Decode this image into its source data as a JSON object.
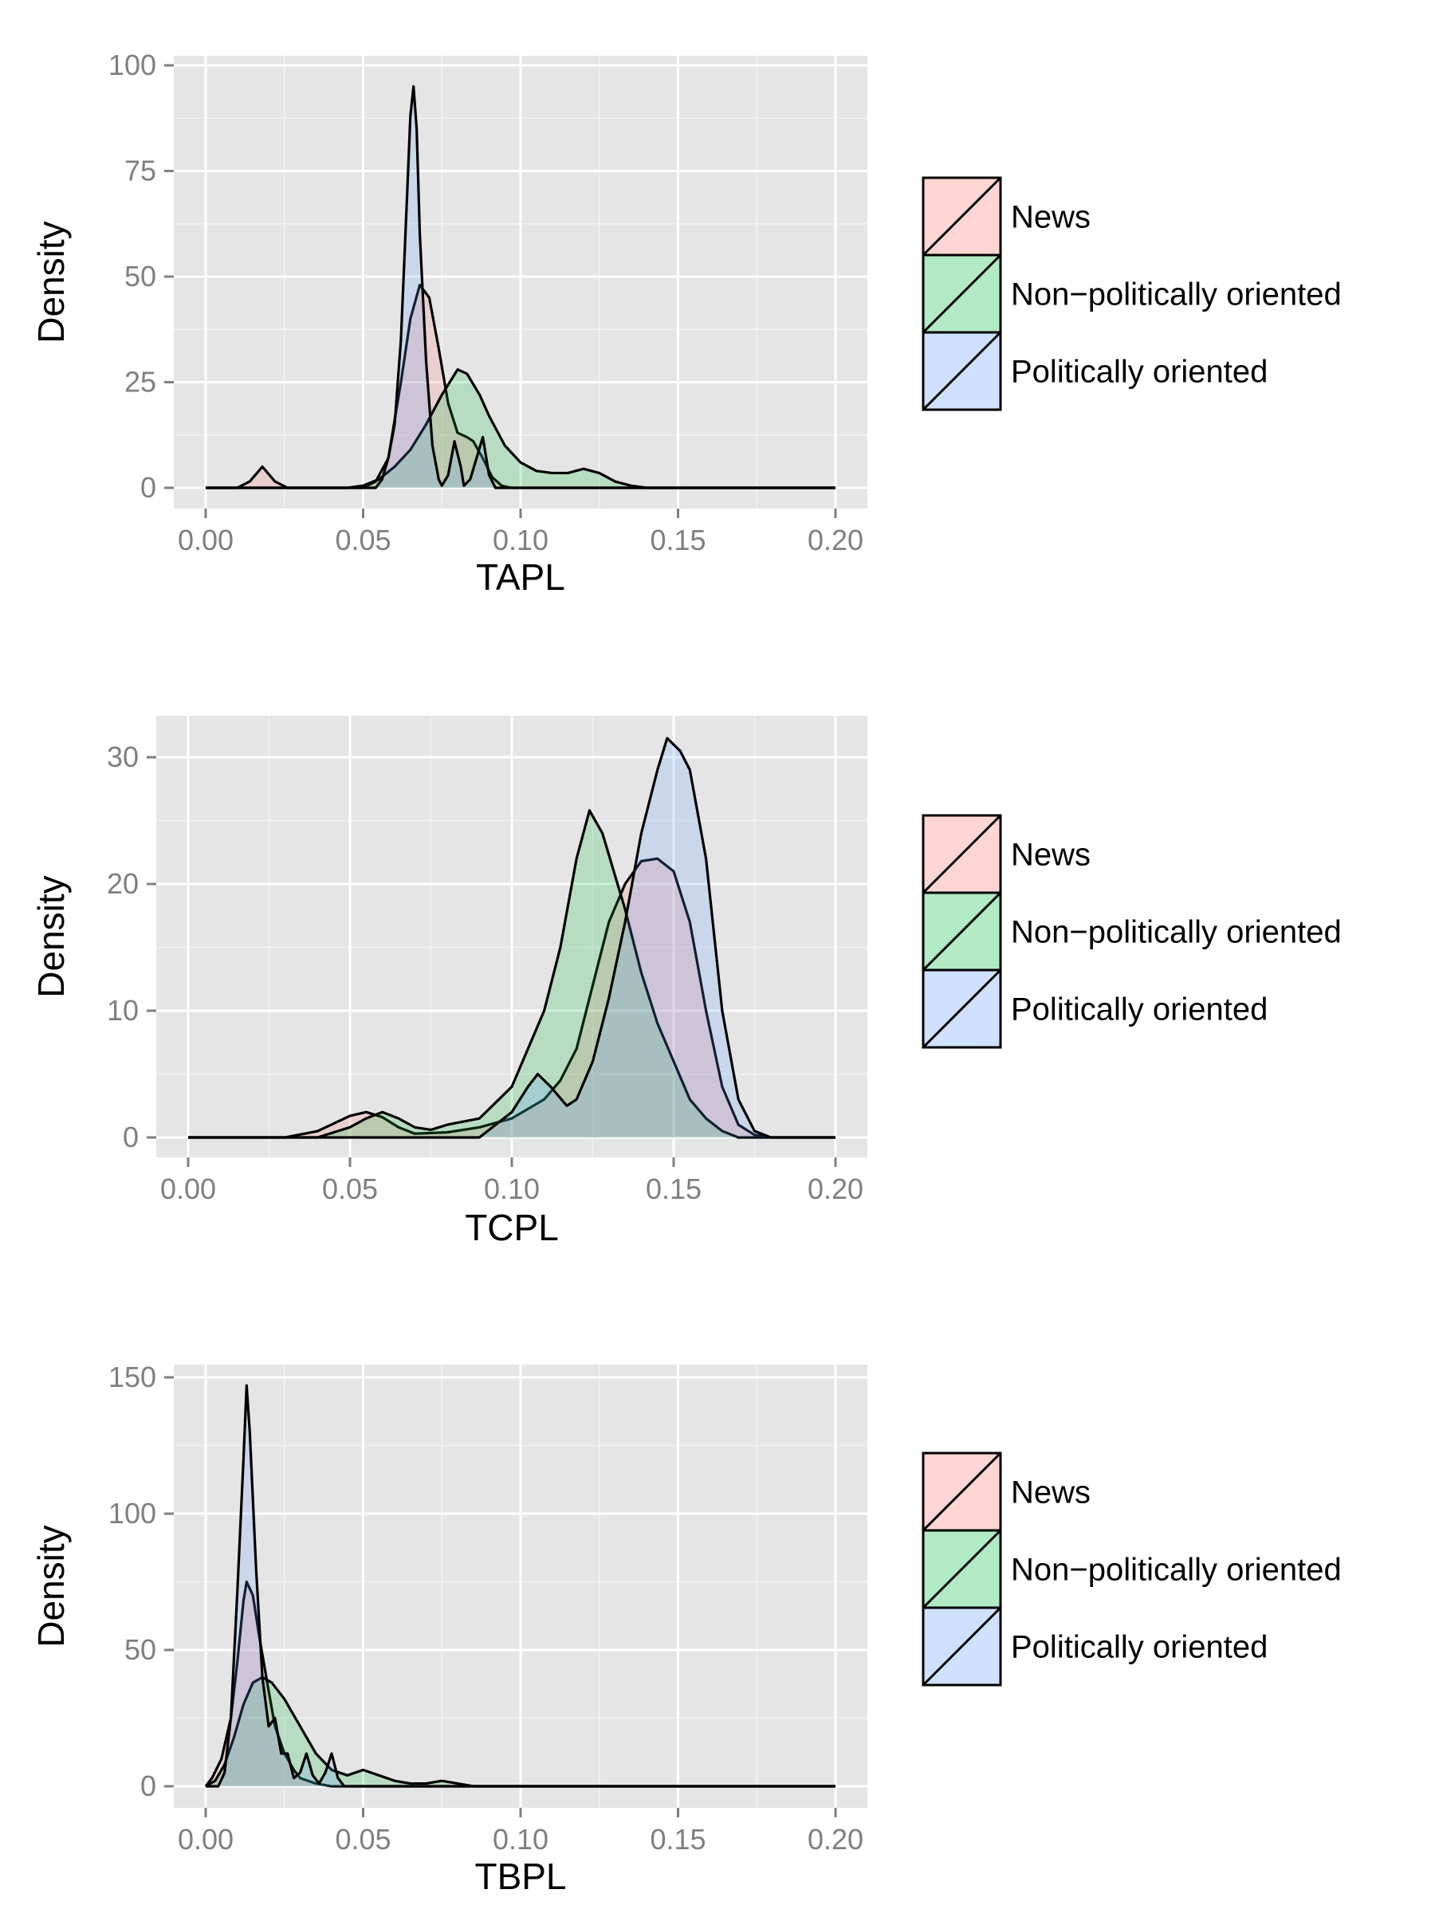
{
  "chart_data": [
    {
      "type": "area",
      "xlabel": "TAPL",
      "ylabel": "Density",
      "xlim": [
        0,
        0.2
      ],
      "ylim": [
        0,
        100
      ],
      "xticks": [
        "0.00",
        "0.05",
        "0.10",
        "0.15",
        "0.20"
      ],
      "xtick_values": [
        0,
        0.05,
        0.1,
        0.15,
        0.2
      ],
      "yticks": [
        "0",
        "25",
        "50",
        "75",
        "100"
      ],
      "ytick_values": [
        0,
        25,
        50,
        75,
        100
      ],
      "grid": true,
      "legend_position": "right",
      "series": [
        {
          "name": "News",
          "color": "#f8766d",
          "points": [
            [
              0,
              0
            ],
            [
              0.01,
              0
            ],
            [
              0.014,
              1.5
            ],
            [
              0.018,
              5
            ],
            [
              0.022,
              1.5
            ],
            [
              0.026,
              0
            ],
            [
              0.05,
              0
            ],
            [
              0.054,
              1.5
            ],
            [
              0.058,
              7
            ],
            [
              0.062,
              25
            ],
            [
              0.065,
              40
            ],
            [
              0.068,
              48
            ],
            [
              0.071,
              45
            ],
            [
              0.074,
              33
            ],
            [
              0.077,
              20
            ],
            [
              0.08,
              13
            ],
            [
              0.083,
              12
            ],
            [
              0.085,
              11
            ],
            [
              0.088,
              7
            ],
            [
              0.091,
              2.5
            ],
            [
              0.094,
              0.5
            ],
            [
              0.097,
              0
            ],
            [
              0.2,
              0
            ]
          ]
        },
        {
          "name": "Non−politically oriented",
          "color": "#00ba38",
          "points": [
            [
              0,
              0
            ],
            [
              0.045,
              0
            ],
            [
              0.05,
              0.5
            ],
            [
              0.055,
              2
            ],
            [
              0.06,
              5
            ],
            [
              0.065,
              9
            ],
            [
              0.07,
              15
            ],
            [
              0.075,
              22
            ],
            [
              0.08,
              28
            ],
            [
              0.083,
              27
            ],
            [
              0.087,
              22
            ],
            [
              0.09,
              17
            ],
            [
              0.095,
              10
            ],
            [
              0.1,
              6
            ],
            [
              0.105,
              4
            ],
            [
              0.11,
              3.5
            ],
            [
              0.115,
              3.5
            ],
            [
              0.12,
              4.5
            ],
            [
              0.125,
              3.5
            ],
            [
              0.13,
              1.5
            ],
            [
              0.135,
              0.5
            ],
            [
              0.14,
              0
            ],
            [
              0.2,
              0
            ]
          ]
        },
        {
          "name": "Politically oriented",
          "color": "#619cff",
          "points": [
            [
              0,
              0
            ],
            [
              0.054,
              0
            ],
            [
              0.056,
              2
            ],
            [
              0.058,
              7
            ],
            [
              0.06,
              15
            ],
            [
              0.062,
              35
            ],
            [
              0.064,
              70
            ],
            [
              0.065,
              88
            ],
            [
              0.066,
              95
            ],
            [
              0.067,
              85
            ],
            [
              0.068,
              60
            ],
            [
              0.07,
              30
            ],
            [
              0.072,
              10
            ],
            [
              0.074,
              2
            ],
            [
              0.075,
              0.5
            ],
            [
              0.077,
              3
            ],
            [
              0.079,
              11
            ],
            [
              0.081,
              5
            ],
            [
              0.082,
              0.5
            ],
            [
              0.084,
              2
            ],
            [
              0.086,
              7
            ],
            [
              0.088,
              12
            ],
            [
              0.09,
              3
            ],
            [
              0.092,
              0
            ],
            [
              0.2,
              0
            ]
          ]
        }
      ]
    },
    {
      "type": "area",
      "xlabel": "TCPL",
      "ylabel": "Density",
      "xlim": [
        0,
        0.2
      ],
      "ylim": [
        0,
        32
      ],
      "xticks": [
        "0.00",
        "0.05",
        "0.10",
        "0.15",
        "0.20"
      ],
      "xtick_values": [
        0,
        0.05,
        0.1,
        0.15,
        0.2
      ],
      "yticks": [
        "0",
        "10",
        "20",
        "30"
      ],
      "ytick_values": [
        0,
        10,
        20,
        30
      ],
      "grid": true,
      "legend_position": "right",
      "series": [
        {
          "name": "News",
          "color": "#f8766d",
          "points": [
            [
              0,
              0
            ],
            [
              0.03,
              0
            ],
            [
              0.04,
              0.5
            ],
            [
              0.05,
              1.7
            ],
            [
              0.055,
              2
            ],
            [
              0.06,
              1.6
            ],
            [
              0.065,
              0.8
            ],
            [
              0.07,
              0.3
            ],
            [
              0.08,
              0.4
            ],
            [
              0.09,
              0.8
            ],
            [
              0.1,
              1.5
            ],
            [
              0.11,
              3
            ],
            [
              0.115,
              4.5
            ],
            [
              0.12,
              7
            ],
            [
              0.125,
              12
            ],
            [
              0.13,
              17
            ],
            [
              0.135,
              20
            ],
            [
              0.14,
              21.8
            ],
            [
              0.145,
              22
            ],
            [
              0.15,
              21
            ],
            [
              0.155,
              17
            ],
            [
              0.16,
              10
            ],
            [
              0.165,
              4
            ],
            [
              0.17,
              1
            ],
            [
              0.175,
              0.2
            ],
            [
              0.18,
              0
            ],
            [
              0.2,
              0
            ]
          ]
        },
        {
          "name": "Non−politically oriented",
          "color": "#00ba38",
          "points": [
            [
              0,
              0
            ],
            [
              0.04,
              0
            ],
            [
              0.05,
              0.8
            ],
            [
              0.055,
              1.5
            ],
            [
              0.06,
              2
            ],
            [
              0.065,
              1.5
            ],
            [
              0.07,
              0.8
            ],
            [
              0.075,
              0.6
            ],
            [
              0.08,
              1
            ],
            [
              0.09,
              1.5
            ],
            [
              0.1,
              4
            ],
            [
              0.105,
              7
            ],
            [
              0.11,
              10
            ],
            [
              0.115,
              15
            ],
            [
              0.12,
              22
            ],
            [
              0.124,
              25.8
            ],
            [
              0.128,
              24
            ],
            [
              0.135,
              18
            ],
            [
              0.14,
              13
            ],
            [
              0.145,
              9
            ],
            [
              0.15,
              6
            ],
            [
              0.155,
              3
            ],
            [
              0.16,
              1.5
            ],
            [
              0.165,
              0.5
            ],
            [
              0.17,
              0
            ],
            [
              0.2,
              0
            ]
          ]
        },
        {
          "name": "Politically oriented",
          "color": "#619cff",
          "points": [
            [
              0,
              0
            ],
            [
              0.09,
              0
            ],
            [
              0.1,
              2
            ],
            [
              0.105,
              4
            ],
            [
              0.108,
              5
            ],
            [
              0.112,
              4
            ],
            [
              0.117,
              2.5
            ],
            [
              0.12,
              3
            ],
            [
              0.125,
              6
            ],
            [
              0.13,
              11
            ],
            [
              0.135,
              17
            ],
            [
              0.14,
              24
            ],
            [
              0.145,
              29
            ],
            [
              0.148,
              31.5
            ],
            [
              0.152,
              30.5
            ],
            [
              0.155,
              29
            ],
            [
              0.16,
              22
            ],
            [
              0.165,
              10
            ],
            [
              0.17,
              3
            ],
            [
              0.175,
              0.5
            ],
            [
              0.18,
              0
            ],
            [
              0.2,
              0
            ]
          ]
        }
      ]
    },
    {
      "type": "area",
      "xlabel": "TBPL",
      "ylabel": "Density",
      "xlim": [
        0,
        0.2
      ],
      "ylim": [
        0,
        150
      ],
      "xticks": [
        "0.00",
        "0.05",
        "0.10",
        "0.15",
        "0.20"
      ],
      "xtick_values": [
        0,
        0.05,
        0.1,
        0.15,
        0.2
      ],
      "yticks": [
        "0",
        "50",
        "100",
        "150"
      ],
      "ytick_values": [
        0,
        50,
        100,
        150
      ],
      "grid": true,
      "legend_position": "right",
      "series": [
        {
          "name": "News",
          "color": "#f8766d",
          "points": [
            [
              0,
              0
            ],
            [
              0.002,
              3
            ],
            [
              0.005,
              10
            ],
            [
              0.008,
              25
            ],
            [
              0.01,
              45
            ],
            [
              0.012,
              68
            ],
            [
              0.013,
              75
            ],
            [
              0.015,
              70
            ],
            [
              0.017,
              55
            ],
            [
              0.02,
              35
            ],
            [
              0.022,
              22
            ],
            [
              0.025,
              12
            ],
            [
              0.028,
              6
            ],
            [
              0.03,
              3
            ],
            [
              0.035,
              1
            ],
            [
              0.04,
              0
            ],
            [
              0.2,
              0
            ]
          ]
        },
        {
          "name": "Non−politically oriented",
          "color": "#00ba38",
          "points": [
            [
              0,
              0
            ],
            [
              0.003,
              2
            ],
            [
              0.006,
              8
            ],
            [
              0.009,
              18
            ],
            [
              0.012,
              30
            ],
            [
              0.015,
              38
            ],
            [
              0.018,
              40
            ],
            [
              0.021,
              38
            ],
            [
              0.025,
              32
            ],
            [
              0.03,
              22
            ],
            [
              0.035,
              12
            ],
            [
              0.04,
              6
            ],
            [
              0.045,
              4
            ],
            [
              0.05,
              6
            ],
            [
              0.055,
              4
            ],
            [
              0.06,
              2
            ],
            [
              0.065,
              1
            ],
            [
              0.07,
              1
            ],
            [
              0.075,
              2
            ],
            [
              0.08,
              1
            ],
            [
              0.085,
              0
            ],
            [
              0.2,
              0
            ]
          ]
        },
        {
          "name": "Politically oriented",
          "color": "#619cff",
          "points": [
            [
              0,
              0
            ],
            [
              0.004,
              0
            ],
            [
              0.006,
              5
            ],
            [
              0.008,
              25
            ],
            [
              0.01,
              70
            ],
            [
              0.012,
              120
            ],
            [
              0.013,
              147
            ],
            [
              0.014,
              130
            ],
            [
              0.016,
              80
            ],
            [
              0.018,
              40
            ],
            [
              0.02,
              22
            ],
            [
              0.022,
              25
            ],
            [
              0.024,
              12
            ],
            [
              0.026,
              12
            ],
            [
              0.028,
              3
            ],
            [
              0.03,
              5
            ],
            [
              0.032,
              12
            ],
            [
              0.034,
              4
            ],
            [
              0.036,
              1
            ],
            [
              0.038,
              5
            ],
            [
              0.04,
              12
            ],
            [
              0.042,
              3
            ],
            [
              0.044,
              0
            ],
            [
              0.2,
              0
            ]
          ]
        }
      ]
    }
  ]
}
